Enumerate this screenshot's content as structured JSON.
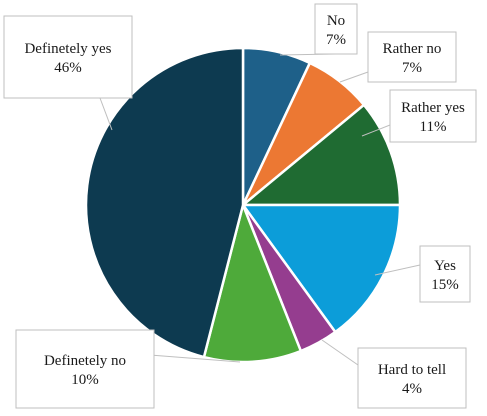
{
  "chart_data": {
    "type": "pie",
    "title": "",
    "slices": [
      {
        "label": "No",
        "value": 7,
        "value_label": "7%",
        "color": "#1e6089"
      },
      {
        "label": "Rather no",
        "value": 7,
        "value_label": "7%",
        "color": "#ec7833"
      },
      {
        "label": "Rather yes",
        "value": 11,
        "value_label": "11%",
        "color": "#1f6b32"
      },
      {
        "label": "Yes",
        "value": 15,
        "value_label": "15%",
        "color": "#0c9dd9"
      },
      {
        "label": "Hard to tell",
        "value": 4,
        "value_label": "4%",
        "color": "#953d8f"
      },
      {
        "label": "Definetely no",
        "value": 10,
        "value_label": "10%",
        "color": "#4eaa3a"
      },
      {
        "label": "Definetely yes",
        "value": 46,
        "value_label": "46%",
        "color": "#0d3a50"
      }
    ],
    "start_angle": "12 o'clock",
    "direction": "clockwise",
    "legend": "none (callout labels)"
  }
}
